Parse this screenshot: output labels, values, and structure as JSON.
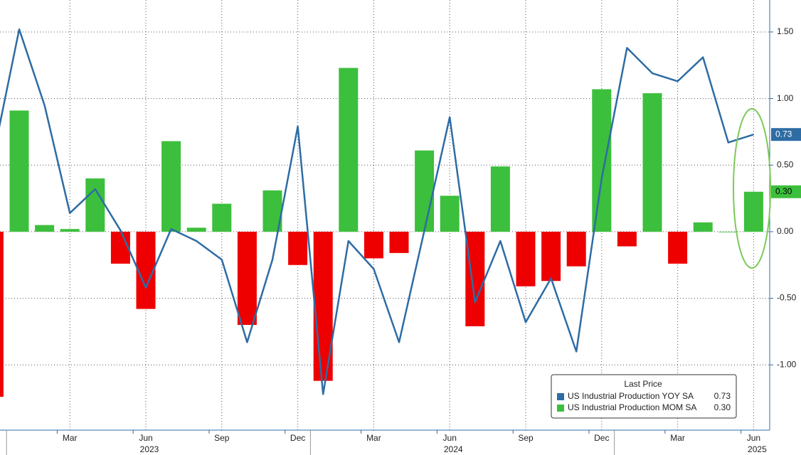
{
  "chart_data": {
    "type": "bar-line",
    "categories": [
      null,
      null,
      null,
      "Mar",
      null,
      null,
      "Jun",
      null,
      null,
      "Sep",
      null,
      null,
      "Dec",
      null,
      null,
      "Mar",
      null,
      null,
      "Jun",
      null,
      null,
      "Sep",
      null,
      null,
      "Dec",
      null,
      null,
      "Mar",
      null,
      null,
      "Jun"
    ],
    "year_labels": [
      null,
      null,
      null,
      null,
      null,
      null,
      "2023",
      null,
      null,
      null,
      null,
      null,
      null,
      null,
      null,
      null,
      null,
      null,
      "2024",
      null,
      null,
      null,
      null,
      null,
      null,
      null,
      null,
      null,
      null,
      null,
      "2025"
    ],
    "legend_title": "Last Price",
    "series": [
      {
        "name": "US Industrial Production YOY SA",
        "type": "line",
        "color": "#2e6ca4",
        "last_label": "0.73",
        "values": [
          0.59,
          1.52,
          0.95,
          0.14,
          0.32,
          0.01,
          -0.42,
          0.02,
          -0.07,
          -0.21,
          -0.83,
          -0.21,
          0.79,
          -1.22,
          -0.07,
          -0.28,
          -0.83,
          0.01,
          0.86,
          -0.53,
          -0.07,
          -0.68,
          -0.35,
          -0.9,
          0.4,
          1.38,
          1.19,
          1.13,
          1.31,
          0.67,
          0.73
        ]
      },
      {
        "name": "US Industrial Production MOM SA",
        "type": "bar",
        "color": "#3cbf3c",
        "negative_color": "#ee0000",
        "last_label": "0.30",
        "values": [
          -1.24,
          0.91,
          0.05,
          0.02,
          0.4,
          -0.24,
          -0.58,
          0.68,
          0.03,
          0.21,
          -0.7,
          0.31,
          -0.25,
          -1.12,
          1.23,
          -0.2,
          -0.16,
          0.61,
          0.27,
          -0.71,
          0.49,
          -0.41,
          -0.37,
          -0.26,
          1.07,
          -0.11,
          1.04,
          -0.24,
          0.07,
          0.0,
          0.3
        ]
      }
    ],
    "ylim": [
      -1.49,
      1.74
    ],
    "yticks": [
      {
        "value": 1.5,
        "label": "1.50"
      },
      {
        "value": 1,
        "label": "1.00"
      },
      {
        "value": 0.5,
        "label": "0.50"
      },
      {
        "value": 0,
        "label": "0.00"
      },
      {
        "value": -0.5,
        "label": "-0.50"
      },
      {
        "value": -1,
        "label": "-1.00"
      }
    ],
    "grid": true
  }
}
